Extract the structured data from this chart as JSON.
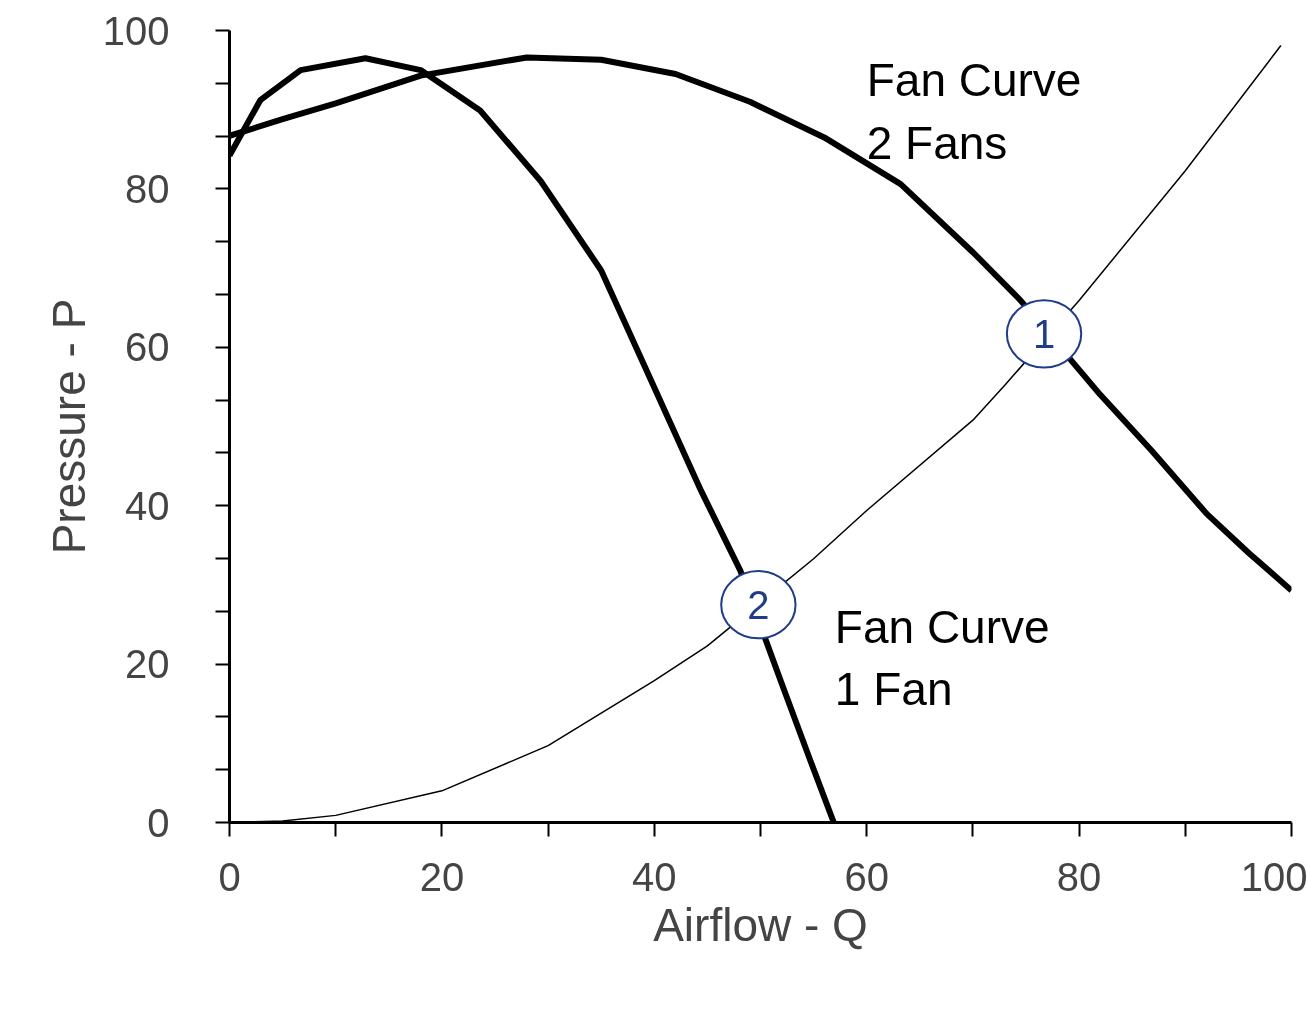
{
  "chart_data": {
    "type": "line",
    "xlabel": "Airflow - Q",
    "ylabel": "Pressure - P",
    "xlim": [
      0,
      100
    ],
    "ylim": [
      0,
      100
    ],
    "xticks": [
      0,
      {
        "value": 10,
        "label": null
      },
      20,
      {
        "value": 30,
        "label": null
      },
      40,
      {
        "value": 50,
        "label": null
      },
      60,
      {
        "value": 70,
        "label": null
      },
      80,
      {
        "value": 90,
        "label": null
      },
      100
    ],
    "yticks": [
      0,
      {
        "value": 6.67,
        "label": null
      },
      {
        "value": 13.33,
        "label": null
      },
      20,
      {
        "value": 26.67,
        "label": null
      },
      {
        "value": 33.33,
        "label": null
      },
      40,
      {
        "value": 46.67,
        "label": null
      },
      {
        "value": 53.33,
        "label": null
      },
      60,
      {
        "value": 66.67,
        "label": null
      },
      {
        "value": 73.33,
        "label": null
      },
      80,
      {
        "value": 86.67,
        "label": null
      },
      {
        "value": 93.33,
        "label": null
      },
      100
    ],
    "series": [
      {
        "name": "Fan Curve\n2 Fans",
        "color": "#000000",
        "x": [
          0,
          5,
          10,
          18,
          28,
          35,
          42,
          49,
          56,
          63.2,
          70,
          74.5,
          82,
          86.8,
          92,
          96,
          100
        ],
        "values": [
          86.7,
          88.8,
          90.8,
          94.3,
          96.6,
          96.3,
          94.5,
          91,
          86.5,
          80.6,
          72,
          65.9,
          54,
          47,
          39,
          34,
          29.3
        ]
      },
      {
        "name": "Fan Curve\n1 Fan",
        "color": "#000000",
        "x": [
          0,
          2.9,
          6.7,
          12.8,
          18,
          23.6,
          29.3,
          35,
          39.7,
          44.4,
          48.1,
          51.9,
          54.7,
          56.9
        ],
        "values": [
          84.2,
          91.2,
          95,
          96.5,
          95,
          89.9,
          81,
          69.7,
          55.8,
          41.9,
          31.8,
          17.9,
          7.8,
          0
        ]
      },
      {
        "color": "#000000",
        "x": [
          0,
          5,
          10,
          20,
          30,
          40,
          45,
          55,
          60,
          70,
          73,
          80,
          90,
          99
        ],
        "values": [
          0,
          0.2,
          0.9,
          4,
          9.7,
          17.9,
          22.3,
          33.3,
          39.4,
          50.8,
          55.2,
          65.9,
          82.3,
          98.1
        ]
      }
    ],
    "annotations": [
      {
        "text": "1",
        "x": 76.7,
        "y": 61.7
      },
      {
        "text": "2",
        "x": 49.8,
        "y": 27.5
      }
    ],
    "grid": false,
    "marker": "none",
    "line_style": "solid"
  }
}
